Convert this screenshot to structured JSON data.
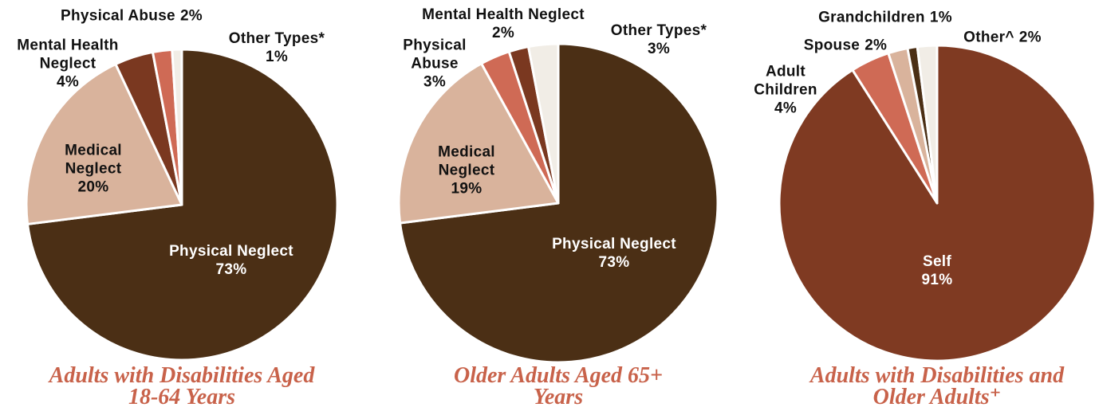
{
  "chart_data": [
    {
      "type": "pie",
      "title": "Adults with Disabilities Aged 18-64 Years",
      "categories": [
        "Physical Neglect",
        "Medical Neglect",
        "Mental Health Neglect",
        "Physical Abuse",
        "Other Types*"
      ],
      "values": [
        73,
        20,
        4,
        2,
        1
      ],
      "value_labels": [
        "73%",
        "20%",
        "4%",
        "2%",
        "1%"
      ],
      "colors": [
        "#4b2f15",
        "#d9b39c",
        "#7a3820",
        "#cf6a55",
        "#f1ede6"
      ]
    },
    {
      "type": "pie",
      "title": "Older Adults Aged 65+ Years",
      "categories": [
        "Physical Neglect",
        "Medical Neglect",
        "Physical Abuse",
        "Mental Health Neglect",
        "Other Types*"
      ],
      "values": [
        73,
        19,
        3,
        2,
        3
      ],
      "value_labels": [
        "73%",
        "19%",
        "3%",
        "2%",
        "3%"
      ],
      "colors": [
        "#4b2f15",
        "#d9b39c",
        "#cf6a55",
        "#7a3820",
        "#f1ede6"
      ]
    },
    {
      "type": "pie",
      "title": "Adults with Disabilities and Older Adults⁺",
      "categories": [
        "Self",
        "Adult Children",
        "Spouse",
        "Grandchildren",
        "Other^"
      ],
      "values": [
        91,
        4,
        2,
        1,
        2
      ],
      "value_labels": [
        "91%",
        "4%",
        "2%",
        "1%",
        "2%"
      ],
      "colors": [
        "#7f3a22",
        "#cf6a55",
        "#d9b39c",
        "#4b2f15",
        "#f1ede6"
      ]
    }
  ]
}
